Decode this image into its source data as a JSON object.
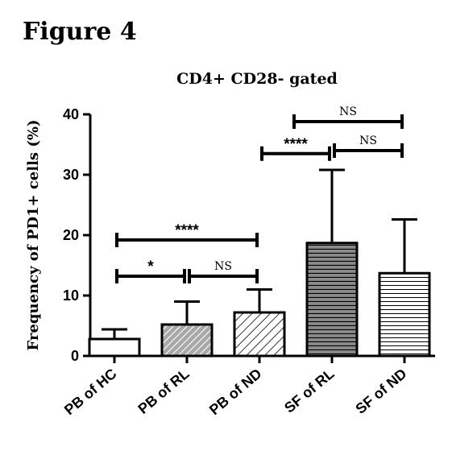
{
  "figure_label": "Figure 4",
  "chart_data": {
    "type": "bar",
    "title": "CD4+ CD28- gated",
    "ylabel": "Frequency of PD1+ cells (%)",
    "xlabel": "",
    "ylim": [
      0,
      40
    ],
    "yticks": [
      0,
      10,
      20,
      30,
      40
    ],
    "categories": [
      "PB of HC",
      "PB of RL",
      "PB of ND",
      "SF of RL",
      "SF of ND"
    ],
    "values": [
      2.8,
      5.2,
      7.2,
      18.7,
      13.7
    ],
    "errors": [
      1.6,
      3.8,
      3.8,
      12.1,
      8.9
    ],
    "patterns": [
      "solid-white",
      "diagonal-stripes",
      "diagonal-stripes-sparse",
      "horizontal-stripes-dark",
      "horizontal-stripes-light"
    ],
    "bar_fill_colors": [
      "#ffffff",
      "#a8a8a8",
      "#ffffff",
      "#8a8a8a",
      "#ffffff"
    ],
    "stroke_color": "#000000",
    "grid": false,
    "legend": "none",
    "significance": [
      {
        "from": 0,
        "to": 1,
        "y": 13.2,
        "label": "*"
      },
      {
        "from": 1,
        "to": 2,
        "y": 13.2,
        "label": "NS"
      },
      {
        "from": 0,
        "to": 2,
        "y": 19.2,
        "label": "****"
      },
      {
        "from": 2,
        "to": 3,
        "y": 33.5,
        "label": "****"
      },
      {
        "from": 3,
        "to": 4,
        "y": 34.0,
        "label": "NS"
      },
      {
        "from": 2.5,
        "to": 4,
        "y": 38.8,
        "label": "NS"
      }
    ]
  }
}
